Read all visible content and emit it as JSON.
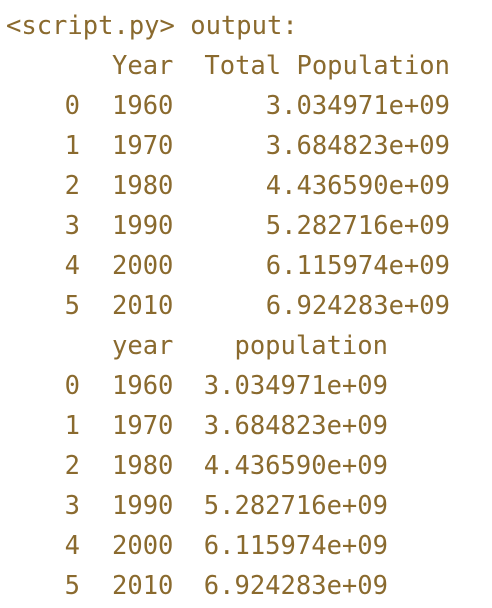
{
  "colors": {
    "background": "#ffffff",
    "text": "#8a6a2e"
  },
  "header": {
    "text": "<script.py> output:"
  },
  "table1": {
    "columns": [
      "Year",
      "Total Population"
    ],
    "rows": [
      {
        "index": "0",
        "year": "1960",
        "value": "3.034971e+09"
      },
      {
        "index": "1",
        "year": "1970",
        "value": "3.684823e+09"
      },
      {
        "index": "2",
        "year": "1980",
        "value": "4.436590e+09"
      },
      {
        "index": "3",
        "year": "1990",
        "value": "5.282716e+09"
      },
      {
        "index": "4",
        "year": "2000",
        "value": "6.115974e+09"
      },
      {
        "index": "5",
        "year": "2010",
        "value": "6.924283e+09"
      }
    ]
  },
  "table2": {
    "columns": [
      "year",
      "population"
    ],
    "rows": [
      {
        "index": "0",
        "year": "1960",
        "value": "3.034971e+09"
      },
      {
        "index": "1",
        "year": "1970",
        "value": "3.684823e+09"
      },
      {
        "index": "2",
        "year": "1980",
        "value": "4.436590e+09"
      },
      {
        "index": "3",
        "year": "1990",
        "value": "5.282716e+09"
      },
      {
        "index": "4",
        "year": "2000",
        "value": "6.115974e+09"
      },
      {
        "index": "5",
        "year": "2010",
        "value": "6.924283e+09"
      }
    ]
  }
}
